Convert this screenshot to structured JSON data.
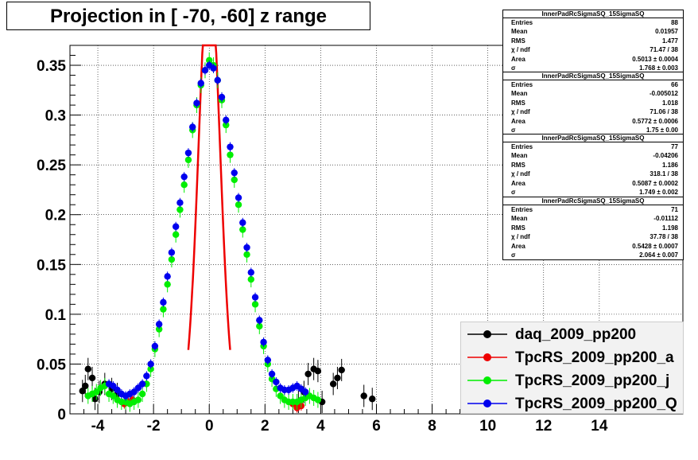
{
  "title": "Projection in [ -70, -60] z range",
  "stat_boxes": [
    {
      "name": "InnerPadRcSigmaSQ_15SigmaSQ",
      "rows": [
        [
          "Entries",
          "88"
        ],
        [
          "Mean",
          "0.01957"
        ],
        [
          "RMS",
          "1.477"
        ],
        [
          "χ  / ndf",
          "71.47 / 38"
        ],
        [
          "Area",
          "0.5013 ± 0.0004"
        ],
        [
          "σ",
          "1.768 ± 0.003"
        ]
      ]
    },
    {
      "name": "InnerPadRcSigmaSQ_15SigmaSQ",
      "rows": [
        [
          "Entries",
          "66"
        ],
        [
          "Mean",
          "-0.005012"
        ],
        [
          "RMS",
          "1.018"
        ],
        [
          "χ  / ndf",
          "71.06 / 38"
        ],
        [
          "Area",
          "0.5772 ± 0.0006"
        ],
        [
          "σ",
          "1.75 ± 0.00"
        ]
      ]
    },
    {
      "name": "InnerPadRcSigmaSQ_15SigmaSQ",
      "rows": [
        [
          "Entries",
          "77"
        ],
        [
          "Mean",
          "-0.04206"
        ],
        [
          "RMS",
          "1.186"
        ],
        [
          "χ  / ndf",
          "318.1 / 38"
        ],
        [
          "Area",
          "0.5087 ± 0.0002"
        ],
        [
          "σ",
          "1.749 ± 0.002"
        ]
      ]
    },
    {
      "name": "InnerPadRcSigmaSQ_15SigmaSQ",
      "rows": [
        [
          "Entries",
          "71"
        ],
        [
          "Mean",
          "-0.01112"
        ],
        [
          "RMS",
          "1.198"
        ],
        [
          "χ  / ndf",
          "37.78 / 38"
        ],
        [
          "Area",
          "0.5428 ± 0.0007"
        ],
        [
          "σ",
          "2.064 ± 0.007"
        ]
      ]
    }
  ],
  "chart_data": {
    "type": "scatter",
    "title": "Projection in [ -70, -60] z range",
    "xlabel": "",
    "ylabel": "",
    "xlim": [
      -5,
      17
    ],
    "ylim": [
      0,
      0.37
    ],
    "grid": true,
    "x_ticks": [
      "-4",
      "-2",
      "0",
      "2",
      "4",
      "6",
      "8",
      "10",
      "12",
      "14"
    ],
    "x_tick_values": [
      -4,
      -2,
      0,
      2,
      4,
      6,
      8,
      10,
      12,
      14
    ],
    "y_ticks": [
      "0",
      "0.05",
      "0.1",
      "0.15",
      "0.2",
      "0.25",
      "0.3",
      "0.35"
    ],
    "y_tick_values": [
      0,
      0.05,
      0.1,
      0.15,
      0.2,
      0.25,
      0.3,
      0.35
    ],
    "legend_position": "bottom-right",
    "fit_curve": {
      "color": "#ee0000",
      "mean": 0.0,
      "sigma": 0.38,
      "amplitude": 0.45,
      "xrange": [
        -0.75,
        0.75
      ]
    },
    "series": [
      {
        "name": "daq_2009_pp200",
        "color": "#000000",
        "points": [
          [
            -4.55,
            0.023
          ],
          [
            -4.45,
            0.028
          ],
          [
            -4.35,
            0.045
          ],
          [
            -4.2,
            0.036
          ],
          [
            -4.1,
            0.015
          ],
          [
            -3.95,
            0.022
          ],
          [
            -3.75,
            0.03
          ],
          [
            -3.5,
            0.025
          ],
          [
            -3.3,
            0.02
          ],
          [
            3.2,
            0.012
          ],
          [
            3.4,
            0.022
          ],
          [
            3.55,
            0.04
          ],
          [
            3.75,
            0.045
          ],
          [
            3.9,
            0.043
          ],
          [
            4.05,
            0.012
          ],
          [
            4.45,
            0.03
          ],
          [
            4.6,
            0.036
          ],
          [
            4.75,
            0.044
          ],
          [
            5.55,
            0.018
          ],
          [
            5.85,
            0.015
          ]
        ]
      },
      {
        "name": "TpcRS_2009_pp200_a",
        "color": "#ee0000",
        "points": [
          [
            -3.05,
            0.01
          ],
          [
            -2.9,
            0.012
          ],
          [
            -2.75,
            0.014
          ],
          [
            3.0,
            0.01
          ],
          [
            3.15,
            0.006
          ],
          [
            3.3,
            0.008
          ]
        ]
      },
      {
        "name": "TpcRS_2009_pp200_j",
        "color": "#00ee00",
        "points": [
          [
            -4.35,
            0.018
          ],
          [
            -4.2,
            0.02
          ],
          [
            -4.05,
            0.022
          ],
          [
            -3.9,
            0.026
          ],
          [
            -3.75,
            0.028
          ],
          [
            -3.6,
            0.02
          ],
          [
            -3.45,
            0.018
          ],
          [
            -3.3,
            0.014
          ],
          [
            -3.15,
            0.012
          ],
          [
            -3.0,
            0.012
          ],
          [
            -2.85,
            0.01
          ],
          [
            -2.7,
            0.012
          ],
          [
            -2.55,
            0.014
          ],
          [
            -2.4,
            0.02
          ],
          [
            -2.25,
            0.03
          ],
          [
            -2.1,
            0.045
          ],
          [
            -1.95,
            0.065
          ],
          [
            -1.8,
            0.085
          ],
          [
            -1.65,
            0.105
          ],
          [
            -1.5,
            0.13
          ],
          [
            -1.35,
            0.155
          ],
          [
            -1.2,
            0.18
          ],
          [
            -1.05,
            0.205
          ],
          [
            -0.9,
            0.23
          ],
          [
            -0.75,
            0.255
          ],
          [
            -0.6,
            0.285
          ],
          [
            -0.45,
            0.31
          ],
          [
            -0.3,
            0.33
          ],
          [
            -0.15,
            0.345
          ],
          [
            0.0,
            0.355
          ],
          [
            0.15,
            0.35
          ],
          [
            0.3,
            0.335
          ],
          [
            0.45,
            0.315
          ],
          [
            0.6,
            0.29
          ],
          [
            0.75,
            0.26
          ],
          [
            0.9,
            0.235
          ],
          [
            1.05,
            0.21
          ],
          [
            1.2,
            0.185
          ],
          [
            1.35,
            0.16
          ],
          [
            1.5,
            0.135
          ],
          [
            1.65,
            0.11
          ],
          [
            1.8,
            0.088
          ],
          [
            1.95,
            0.068
          ],
          [
            2.1,
            0.05
          ],
          [
            2.25,
            0.035
          ],
          [
            2.4,
            0.025
          ],
          [
            2.55,
            0.018
          ],
          [
            2.7,
            0.014
          ],
          [
            2.85,
            0.012
          ],
          [
            3.0,
            0.012
          ],
          [
            3.15,
            0.012
          ],
          [
            3.3,
            0.014
          ],
          [
            3.45,
            0.016
          ],
          [
            3.6,
            0.018
          ],
          [
            3.75,
            0.016
          ],
          [
            3.9,
            0.014
          ]
        ]
      },
      {
        "name": "TpcRS_2009_pp200_Q",
        "color": "#0000ee",
        "points": [
          [
            -3.6,
            0.03
          ],
          [
            -3.45,
            0.028
          ],
          [
            -3.3,
            0.024
          ],
          [
            -3.15,
            0.02
          ],
          [
            -3.0,
            0.018
          ],
          [
            -2.85,
            0.02
          ],
          [
            -2.7,
            0.022
          ],
          [
            -2.55,
            0.026
          ],
          [
            -2.4,
            0.03
          ],
          [
            -2.25,
            0.038
          ],
          [
            -2.1,
            0.05
          ],
          [
            -1.95,
            0.068
          ],
          [
            -1.8,
            0.09
          ],
          [
            -1.65,
            0.112
          ],
          [
            -1.5,
            0.138
          ],
          [
            -1.35,
            0.162
          ],
          [
            -1.2,
            0.188
          ],
          [
            -1.05,
            0.212
          ],
          [
            -0.9,
            0.238
          ],
          [
            -0.75,
            0.262
          ],
          [
            -0.6,
            0.288
          ],
          [
            -0.45,
            0.312
          ],
          [
            -0.3,
            0.332
          ],
          [
            -0.15,
            0.345
          ],
          [
            0.0,
            0.35
          ],
          [
            0.15,
            0.347
          ],
          [
            0.3,
            0.335
          ],
          [
            0.45,
            0.318
          ],
          [
            0.6,
            0.295
          ],
          [
            0.75,
            0.268
          ],
          [
            0.9,
            0.242
          ],
          [
            1.05,
            0.217
          ],
          [
            1.2,
            0.192
          ],
          [
            1.35,
            0.167
          ],
          [
            1.5,
            0.142
          ],
          [
            1.65,
            0.117
          ],
          [
            1.8,
            0.094
          ],
          [
            1.95,
            0.072
          ],
          [
            2.1,
            0.054
          ],
          [
            2.25,
            0.04
          ],
          [
            2.4,
            0.032
          ],
          [
            2.55,
            0.026
          ],
          [
            2.7,
            0.024
          ],
          [
            2.85,
            0.024
          ],
          [
            3.0,
            0.026
          ],
          [
            3.15,
            0.028
          ],
          [
            3.3,
            0.025
          ],
          [
            3.45,
            0.022
          ]
        ]
      }
    ]
  }
}
